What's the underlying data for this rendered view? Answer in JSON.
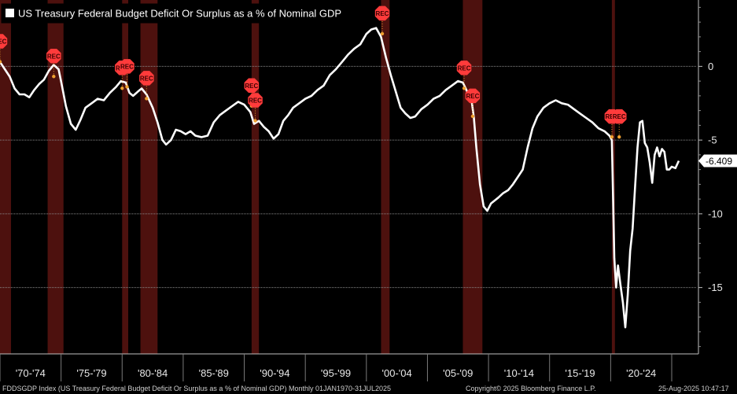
{
  "chart_data": {
    "type": "line",
    "title": "US Treasury Federal Budget Deficit Or Surplus as a % of Nominal GDP",
    "last_value_label": "-6.409",
    "last_value": -6.409,
    "x_range": [
      1970.0,
      2025.58
    ],
    "ylim": [
      -19.5,
      4.5
    ],
    "y_ticks": [
      0,
      -5,
      -10,
      -15
    ],
    "y_tick_labels": [
      "0",
      "-5",
      "-10",
      "-15"
    ],
    "x_period_labels": [
      "'70-'74",
      "'75-'79",
      "'80-'84",
      "'85-'89",
      "'90-'94",
      "'95-'99",
      "'00-'04",
      "'05-'09",
      "'10-'14",
      "'15-'19",
      "'20-'24"
    ],
    "x_period_starts": [
      1970,
      1975,
      1980,
      1985,
      1990,
      1995,
      2000,
      2005,
      2010,
      2015,
      2020
    ],
    "recessions": [
      [
        1970.0,
        1970.9
      ],
      [
        1973.9,
        1975.2
      ],
      [
        1980.0,
        1980.5
      ],
      [
        1981.5,
        1982.9
      ],
      [
        1990.6,
        1991.2
      ],
      [
        2001.2,
        2001.9
      ],
      [
        2007.9,
        2009.5
      ],
      [
        2020.1,
        2020.35
      ]
    ],
    "rec_label": "REC",
    "rec_markers": [
      [
        1970.0,
        1.7
      ],
      [
        1974.4,
        0.7
      ],
      [
        1980.0,
        -0.1
      ],
      [
        1980.4,
        0.0
      ],
      [
        1982.0,
        -0.8
      ],
      [
        1990.6,
        -1.3
      ],
      [
        1990.9,
        -2.3
      ],
      [
        2001.3,
        3.6
      ],
      [
        2008.0,
        -0.1
      ],
      [
        2008.7,
        -2.0
      ],
      [
        2020.1,
        -3.4
      ],
      [
        2020.7,
        -3.4
      ]
    ],
    "series": [
      {
        "points": [
          [
            1970.0,
            0.3
          ],
          [
            1970.4,
            -0.2
          ],
          [
            1970.8,
            -0.7
          ],
          [
            1971.2,
            -1.5
          ],
          [
            1971.6,
            -1.9
          ],
          [
            1972.0,
            -1.9
          ],
          [
            1972.4,
            -2.1
          ],
          [
            1972.8,
            -1.6
          ],
          [
            1973.2,
            -1.2
          ],
          [
            1973.6,
            -0.9
          ],
          [
            1974.0,
            -0.3
          ],
          [
            1974.4,
            0.1
          ],
          [
            1974.8,
            -0.2
          ],
          [
            1975.0,
            -1.0
          ],
          [
            1975.4,
            -2.7
          ],
          [
            1975.8,
            -3.9
          ],
          [
            1976.2,
            -4.3
          ],
          [
            1976.6,
            -3.6
          ],
          [
            1977.0,
            -2.8
          ],
          [
            1977.5,
            -2.5
          ],
          [
            1978.0,
            -2.2
          ],
          [
            1978.5,
            -2.3
          ],
          [
            1979.0,
            -1.8
          ],
          [
            1979.5,
            -1.4
          ],
          [
            1979.9,
            -1.0
          ],
          [
            1980.3,
            -1.1
          ],
          [
            1980.6,
            -1.8
          ],
          [
            1980.9,
            -2.0
          ],
          [
            1981.3,
            -1.7
          ],
          [
            1981.6,
            -1.5
          ],
          [
            1982.0,
            -1.9
          ],
          [
            1982.5,
            -2.8
          ],
          [
            1982.9,
            -3.8
          ],
          [
            1983.3,
            -5.0
          ],
          [
            1983.6,
            -5.3
          ],
          [
            1984.0,
            -5.0
          ],
          [
            1984.4,
            -4.3
          ],
          [
            1984.8,
            -4.4
          ],
          [
            1985.2,
            -4.6
          ],
          [
            1985.6,
            -4.4
          ],
          [
            1986.0,
            -4.7
          ],
          [
            1986.5,
            -4.8
          ],
          [
            1987.0,
            -4.7
          ],
          [
            1987.5,
            -3.8
          ],
          [
            1988.0,
            -3.3
          ],
          [
            1988.5,
            -3.0
          ],
          [
            1989.0,
            -2.7
          ],
          [
            1989.5,
            -2.4
          ],
          [
            1990.0,
            -2.6
          ],
          [
            1990.5,
            -3.1
          ],
          [
            1990.8,
            -3.9
          ],
          [
            1991.2,
            -3.7
          ],
          [
            1991.6,
            -4.1
          ],
          [
            1992.0,
            -4.4
          ],
          [
            1992.4,
            -4.9
          ],
          [
            1992.8,
            -4.6
          ],
          [
            1993.2,
            -3.7
          ],
          [
            1993.6,
            -3.3
          ],
          [
            1994.0,
            -2.8
          ],
          [
            1994.5,
            -2.5
          ],
          [
            1995.0,
            -2.2
          ],
          [
            1995.5,
            -2.0
          ],
          [
            1996.0,
            -1.6
          ],
          [
            1996.5,
            -1.3
          ],
          [
            1997.0,
            -0.6
          ],
          [
            1997.5,
            -0.2
          ],
          [
            1998.0,
            0.3
          ],
          [
            1998.5,
            0.8
          ],
          [
            1999.0,
            1.2
          ],
          [
            1999.5,
            1.5
          ],
          [
            2000.0,
            2.2
          ],
          [
            2000.4,
            2.5
          ],
          [
            2000.8,
            2.6
          ],
          [
            2001.2,
            2.0
          ],
          [
            2001.6,
            0.6
          ],
          [
            2002.0,
            -0.6
          ],
          [
            2002.4,
            -1.7
          ],
          [
            2002.8,
            -2.8
          ],
          [
            2003.2,
            -3.2
          ],
          [
            2003.6,
            -3.5
          ],
          [
            2004.0,
            -3.4
          ],
          [
            2004.5,
            -2.9
          ],
          [
            2005.0,
            -2.6
          ],
          [
            2005.5,
            -2.2
          ],
          [
            2006.0,
            -2.0
          ],
          [
            2006.5,
            -1.6
          ],
          [
            2007.0,
            -1.3
          ],
          [
            2007.5,
            -1.0
          ],
          [
            2007.9,
            -1.1
          ],
          [
            2008.3,
            -1.8
          ],
          [
            2008.6,
            -2.2
          ],
          [
            2008.8,
            -3.5
          ],
          [
            2009.0,
            -5.5
          ],
          [
            2009.3,
            -8.0
          ],
          [
            2009.6,
            -9.5
          ],
          [
            2009.9,
            -9.8
          ],
          [
            2010.2,
            -9.3
          ],
          [
            2010.5,
            -9.1
          ],
          [
            2010.8,
            -8.9
          ],
          [
            2011.2,
            -8.6
          ],
          [
            2011.6,
            -8.4
          ],
          [
            2012.0,
            -8.0
          ],
          [
            2012.4,
            -7.5
          ],
          [
            2012.8,
            -7.0
          ],
          [
            2013.2,
            -5.5
          ],
          [
            2013.6,
            -4.2
          ],
          [
            2014.0,
            -3.4
          ],
          [
            2014.5,
            -2.8
          ],
          [
            2015.0,
            -2.5
          ],
          [
            2015.5,
            -2.3
          ],
          [
            2016.0,
            -2.5
          ],
          [
            2016.5,
            -2.6
          ],
          [
            2017.0,
            -2.9
          ],
          [
            2017.5,
            -3.2
          ],
          [
            2018.0,
            -3.5
          ],
          [
            2018.5,
            -3.8
          ],
          [
            2019.0,
            -4.2
          ],
          [
            2019.5,
            -4.4
          ],
          [
            2019.9,
            -4.7
          ],
          [
            2020.1,
            -5.0
          ],
          [
            2020.2,
            -9.0
          ],
          [
            2020.3,
            -13.0
          ],
          [
            2020.45,
            -15.0
          ],
          [
            2020.6,
            -13.5
          ],
          [
            2020.8,
            -14.8
          ],
          [
            2021.0,
            -16.0
          ],
          [
            2021.2,
            -17.7
          ],
          [
            2021.4,
            -15.5
          ],
          [
            2021.6,
            -12.5
          ],
          [
            2021.8,
            -11.0
          ],
          [
            2022.0,
            -8.2
          ],
          [
            2022.2,
            -5.5
          ],
          [
            2022.4,
            -3.8
          ],
          [
            2022.6,
            -3.7
          ],
          [
            2022.8,
            -5.2
          ],
          [
            2023.0,
            -5.5
          ],
          [
            2023.2,
            -6.5
          ],
          [
            2023.4,
            -7.9
          ],
          [
            2023.6,
            -6.0
          ],
          [
            2023.8,
            -5.5
          ],
          [
            2024.0,
            -6.1
          ],
          [
            2024.2,
            -5.6
          ],
          [
            2024.4,
            -5.8
          ],
          [
            2024.6,
            -7.0
          ],
          [
            2024.8,
            -7.0
          ],
          [
            2025.0,
            -6.8
          ],
          [
            2025.3,
            -6.9
          ],
          [
            2025.58,
            -6.409
          ]
        ]
      }
    ]
  },
  "footer": {
    "left": "FDDSGDP Index (US Treasury Federal Budget Deficit Or Surplus as a % of Nominal GDP)  Monthly 01JAN1970-31JUL2025",
    "center": "Copyright© 2025 Bloomberg Finance L.P.",
    "right": "25-Aug-2025 10:47:17"
  },
  "colors": {
    "background": "#000000",
    "line": "#ffffff",
    "recession_band": "#5a1410",
    "rec_marker": "#ff3b3b",
    "point_marker": "#f0a030",
    "grid": "#8a8a8a"
  }
}
